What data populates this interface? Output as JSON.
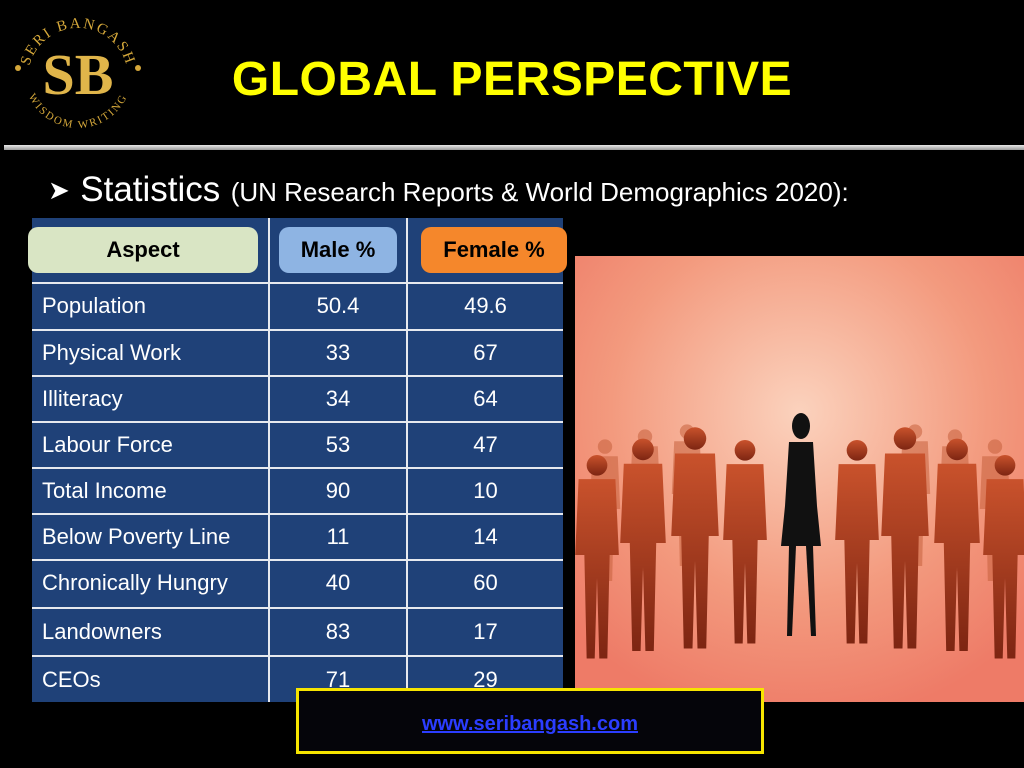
{
  "logo": {
    "ring_top": "SERI BANGASH",
    "ring_bottom": "WISDOM WRITING",
    "monogram": "SB"
  },
  "title": "GLOBAL PERSPECTIVE",
  "subtitle": {
    "bullet_icon": "arrow-bullet-icon",
    "main": "Statistics",
    "note": "(UN Research Reports & World Demographics 2020):"
  },
  "table": {
    "headers": [
      "Aspect",
      "Male %",
      "Female %"
    ],
    "rows": [
      [
        "Population",
        "50.4",
        "49.6"
      ],
      [
        "Physical Work",
        "33",
        "67"
      ],
      [
        "Illiteracy",
        "34",
        "64"
      ],
      [
        "Labour Force",
        "53",
        "47"
      ],
      [
        "Total Income",
        "90",
        "10"
      ],
      [
        "Below Poverty Line",
        "11",
        "14"
      ],
      [
        "Chronically Hungry",
        "40",
        "60"
      ],
      [
        "Landowners",
        "83",
        "17"
      ],
      [
        "CEOs",
        "71",
        "29"
      ]
    ],
    "colors": {
      "background": "#1f4178",
      "aspect_pill": "#d9e5c4",
      "male_pill": "#8eb4e3",
      "female_pill": "#f5872b"
    }
  },
  "footer": {
    "link": "www.seribangash.com"
  },
  "colors": {
    "title": "#ffff00",
    "link": "#2b3dff",
    "footer_border": "#f6e400"
  }
}
